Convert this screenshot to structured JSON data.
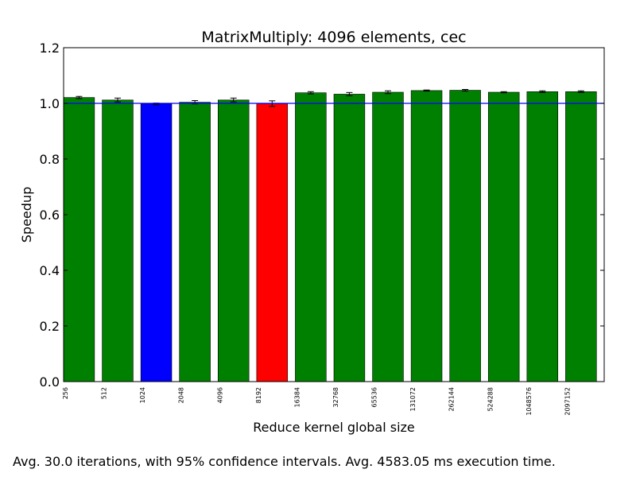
{
  "chart_data": {
    "type": "bar",
    "title": "MatrixMultiply: 4096 elements, cec",
    "xlabel": "Reduce kernel global size",
    "ylabel": "Speedup",
    "ylim": [
      0,
      1.2
    ],
    "yticks": [
      "0.0",
      "0.2",
      "0.4",
      "0.6",
      "0.8",
      "1.0",
      "1.2"
    ],
    "grid": false,
    "reference_line": 1.0,
    "reference_line_color": "#0000ff",
    "categories": [
      "256",
      "512",
      "1024",
      "2048",
      "4096",
      "8192",
      "16384",
      "32768",
      "65536",
      "131072",
      "262144",
      "524288",
      "1048576",
      "2097152"
    ],
    "values": [
      1.021,
      1.012,
      0.998,
      1.004,
      1.012,
      0.999,
      1.038,
      1.033,
      1.04,
      1.046,
      1.047,
      1.04,
      1.042,
      1.042
    ],
    "errors": [
      0.004,
      0.007,
      0.003,
      0.006,
      0.007,
      0.01,
      0.004,
      0.006,
      0.005,
      0.002,
      0.003,
      0.002,
      0.003,
      0.003
    ],
    "bar_colors": [
      "#008000",
      "#008000",
      "#0000ff",
      "#008000",
      "#008000",
      "#ff0000",
      "#008000",
      "#008000",
      "#008000",
      "#008000",
      "#008000",
      "#008000",
      "#008000",
      "#008000"
    ]
  },
  "footnote": "Avg. 30.0 iterations, with 95% confidence intervals. Avg. 4583.05 ms execution time."
}
